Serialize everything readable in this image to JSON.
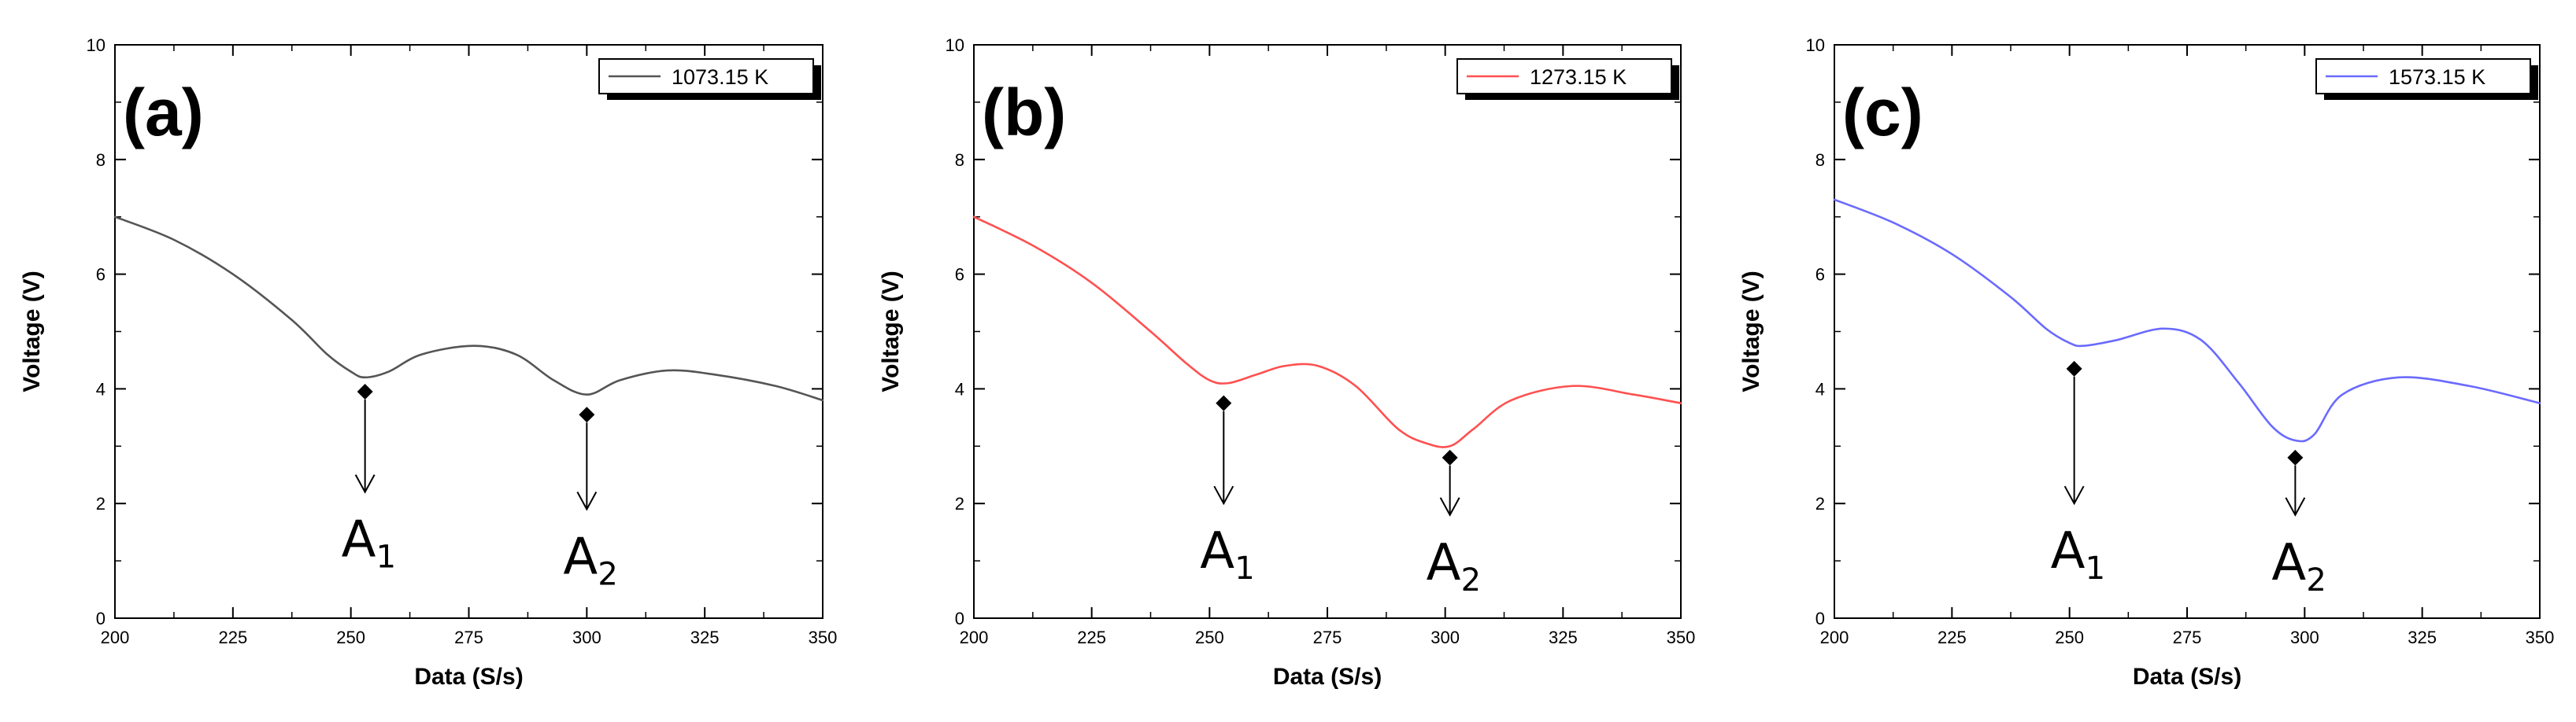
{
  "chart_data": [
    {
      "type": "line",
      "panel_label": "(a)",
      "xlabel": "Data (S/s)",
      "ylabel": "Voltage (V)",
      "xlim": [
        200,
        350
      ],
      "ylim": [
        0,
        10
      ],
      "xticks": [
        "200",
        "225",
        "250",
        "275",
        "300",
        "325",
        "350"
      ],
      "yticks": [
        "0",
        "2",
        "4",
        "6",
        "8",
        "10"
      ],
      "legend": "top-right",
      "series": [
        {
          "name": "1073.15 K",
          "color": "#555555",
          "x": [
            200,
            212.5,
            225,
            237.5,
            245,
            250,
            253,
            258,
            265,
            276,
            285,
            293,
            300,
            307,
            317,
            327,
            340,
            350
          ],
          "y": [
            7.0,
            6.6,
            6.0,
            5.2,
            4.6,
            4.3,
            4.2,
            4.3,
            4.6,
            4.75,
            4.6,
            4.15,
            3.9,
            4.15,
            4.32,
            4.25,
            4.05,
            3.8
          ]
        }
      ],
      "annotations": [
        {
          "label": "A",
          "sub": "1",
          "x": 253,
          "y_marker": 3.95,
          "y_arrow_end": 2.2
        },
        {
          "label": "A",
          "sub": "2",
          "x": 300,
          "y_marker": 3.55,
          "y_arrow_end": 1.9
        }
      ]
    },
    {
      "type": "line",
      "panel_label": "(b)",
      "xlabel": "Data (S/s)",
      "ylabel": "Voltage (V)",
      "xlim": [
        200,
        350
      ],
      "ylim": [
        0,
        10
      ],
      "xticks": [
        "200",
        "225",
        "250",
        "275",
        "300",
        "325",
        "350"
      ],
      "yticks": [
        "0",
        "2",
        "4",
        "6",
        "8",
        "10"
      ],
      "legend": "top-right",
      "series": [
        {
          "name": "1273.15 K",
          "color": "#ff5050",
          "x": [
            200,
            212.5,
            225,
            237.5,
            245,
            250,
            254,
            260,
            266,
            273,
            281,
            290,
            296,
            301,
            306,
            314,
            327,
            340,
            350
          ],
          "y": [
            7.0,
            6.5,
            5.85,
            5.0,
            4.45,
            4.15,
            4.1,
            4.25,
            4.4,
            4.4,
            4.05,
            3.3,
            3.05,
            3.0,
            3.3,
            3.8,
            4.05,
            3.9,
            3.75
          ]
        }
      ],
      "annotations": [
        {
          "label": "A",
          "sub": "1",
          "x": 253,
          "y_marker": 3.75,
          "y_arrow_end": 2.0
        },
        {
          "label": "A",
          "sub": "2",
          "x": 301,
          "y_marker": 2.8,
          "y_arrow_end": 1.8
        }
      ]
    },
    {
      "type": "line",
      "panel_label": "(c)",
      "xlabel": "Data (S/s)",
      "ylabel": "Voltage (V)",
      "xlim": [
        200,
        350
      ],
      "ylim": [
        0,
        10
      ],
      "xticks": [
        "200",
        "225",
        "250",
        "275",
        "300",
        "325",
        "350"
      ],
      "yticks": [
        "0",
        "2",
        "4",
        "6",
        "8",
        "10"
      ],
      "legend": "top-right",
      "series": [
        {
          "name": "1573.15 K",
          "color": "#6a6aff",
          "x": [
            200,
            212.5,
            225,
            237.5,
            245,
            250,
            253,
            260,
            270,
            278,
            286,
            293,
            298,
            302,
            308,
            320,
            335,
            350
          ],
          "y": [
            7.3,
            6.9,
            6.35,
            5.6,
            5.05,
            4.8,
            4.75,
            4.85,
            5.05,
            4.85,
            4.1,
            3.35,
            3.1,
            3.2,
            3.9,
            4.2,
            4.05,
            3.75
          ]
        }
      ],
      "annotations": [
        {
          "label": "A",
          "sub": "1",
          "x": 251,
          "y_marker": 4.35,
          "y_arrow_end": 2.0
        },
        {
          "label": "A",
          "sub": "2",
          "x": 298,
          "y_marker": 2.8,
          "y_arrow_end": 1.8
        }
      ]
    }
  ]
}
